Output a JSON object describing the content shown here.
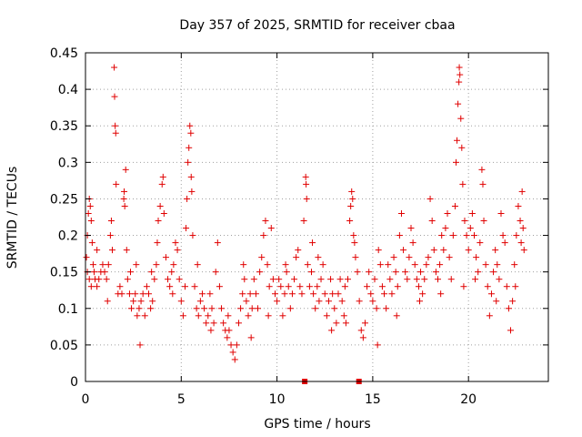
{
  "chart_data": {
    "type": "scatter",
    "title": "Day 357 of 2025, SRMTID for receiver cbaa",
    "xlabel": "GPS time / hours",
    "ylabel": "SRMTID / TECUs",
    "xlim": [
      0,
      24.17
    ],
    "ylim": [
      0,
      0.45
    ],
    "xticks": [
      0,
      5,
      10,
      15,
      20
    ],
    "xtick_labels": [
      "0",
      "5",
      "10",
      "15",
      "20"
    ],
    "yticks": [
      0,
      0.05,
      0.1,
      0.15,
      0.2,
      0.25,
      0.3,
      0.35,
      0.4,
      0.45
    ],
    "ytick_labels": [
      "0",
      "0.05",
      "0.1",
      "0.15",
      "0.2",
      "0.25",
      "0.3",
      "0.35",
      "0.4",
      "0.45"
    ],
    "grid": true,
    "marker": "plus",
    "color": "#e00000",
    "series": [
      {
        "name": "SRMTID",
        "points": [
          [
            0.05,
            0.17
          ],
          [
            0.1,
            0.2
          ],
          [
            0.15,
            0.23
          ],
          [
            0.2,
            0.25
          ],
          [
            0.25,
            0.24
          ],
          [
            0.3,
            0.22
          ],
          [
            0.35,
            0.19
          ],
          [
            0.4,
            0.16
          ],
          [
            0.45,
            0.15
          ],
          [
            0.5,
            0.14
          ],
          [
            0.1,
            0.15
          ],
          [
            0.2,
            0.14
          ],
          [
            0.3,
            0.13
          ],
          [
            0.6,
            0.13
          ],
          [
            0.7,
            0.14
          ],
          [
            0.8,
            0.15
          ],
          [
            0.9,
            0.16
          ],
          [
            1.0,
            0.15
          ],
          [
            1.1,
            0.14
          ],
          [
            1.2,
            0.16
          ],
          [
            1.3,
            0.2
          ],
          [
            1.35,
            0.22
          ],
          [
            1.4,
            0.18
          ],
          [
            1.5,
            0.43
          ],
          [
            1.52,
            0.39
          ],
          [
            1.55,
            0.35
          ],
          [
            1.58,
            0.34
          ],
          [
            1.6,
            0.27
          ],
          [
            1.7,
            0.12
          ],
          [
            1.8,
            0.13
          ],
          [
            1.9,
            0.12
          ],
          [
            2.0,
            0.25
          ],
          [
            2.02,
            0.26
          ],
          [
            2.05,
            0.24
          ],
          [
            2.1,
            0.29
          ],
          [
            2.15,
            0.18
          ],
          [
            2.2,
            0.14
          ],
          [
            2.3,
            0.12
          ],
          [
            2.4,
            0.1
          ],
          [
            2.5,
            0.11
          ],
          [
            2.6,
            0.12
          ],
          [
            2.7,
            0.09
          ],
          [
            2.8,
            0.1
          ],
          [
            2.85,
            0.05
          ],
          [
            2.9,
            0.11
          ],
          [
            3.0,
            0.12
          ],
          [
            3.1,
            0.09
          ],
          [
            3.2,
            0.13
          ],
          [
            3.3,
            0.12
          ],
          [
            3.4,
            0.1
          ],
          [
            3.5,
            0.11
          ],
          [
            3.6,
            0.14
          ],
          [
            3.7,
            0.16
          ],
          [
            3.8,
            0.22
          ],
          [
            3.9,
            0.24
          ],
          [
            4.0,
            0.27
          ],
          [
            4.05,
            0.28
          ],
          [
            4.1,
            0.23
          ],
          [
            4.2,
            0.17
          ],
          [
            4.3,
            0.14
          ],
          [
            4.4,
            0.13
          ],
          [
            4.5,
            0.15
          ],
          [
            4.6,
            0.16
          ],
          [
            4.7,
            0.19
          ],
          [
            4.8,
            0.18
          ],
          [
            4.9,
            0.14
          ],
          [
            5.0,
            0.11
          ],
          [
            5.1,
            0.09
          ],
          [
            5.2,
            0.13
          ],
          [
            5.25,
            0.21
          ],
          [
            5.3,
            0.25
          ],
          [
            5.35,
            0.3
          ],
          [
            5.4,
            0.32
          ],
          [
            5.45,
            0.35
          ],
          [
            5.5,
            0.34
          ],
          [
            5.52,
            0.28
          ],
          [
            5.55,
            0.26
          ],
          [
            5.6,
            0.2
          ],
          [
            5.7,
            0.13
          ],
          [
            5.8,
            0.1
          ],
          [
            5.9,
            0.09
          ],
          [
            6.0,
            0.11
          ],
          [
            6.1,
            0.12
          ],
          [
            6.2,
            0.1
          ],
          [
            6.3,
            0.08
          ],
          [
            6.4,
            0.09
          ],
          [
            6.5,
            0.12
          ],
          [
            6.6,
            0.1
          ],
          [
            6.7,
            0.08
          ],
          [
            6.8,
            0.15
          ],
          [
            6.9,
            0.19
          ],
          [
            7.0,
            0.13
          ],
          [
            7.1,
            0.1
          ],
          [
            7.2,
            0.08
          ],
          [
            7.3,
            0.07
          ],
          [
            7.4,
            0.06
          ],
          [
            7.5,
            0.07
          ],
          [
            7.6,
            0.05
          ],
          [
            7.7,
            0.04
          ],
          [
            7.8,
            0.03
          ],
          [
            7.9,
            0.05
          ],
          [
            8.0,
            0.08
          ],
          [
            8.1,
            0.1
          ],
          [
            8.2,
            0.12
          ],
          [
            8.3,
            0.14
          ],
          [
            8.4,
            0.11
          ],
          [
            8.5,
            0.09
          ],
          [
            8.6,
            0.12
          ],
          [
            8.7,
            0.1
          ],
          [
            8.8,
            0.14
          ],
          [
            8.9,
            0.12
          ],
          [
            9.0,
            0.1
          ],
          [
            9.1,
            0.15
          ],
          [
            9.2,
            0.17
          ],
          [
            9.3,
            0.2
          ],
          [
            9.4,
            0.22
          ],
          [
            9.5,
            0.16
          ],
          [
            9.6,
            0.13
          ],
          [
            9.7,
            0.21
          ],
          [
            9.8,
            0.14
          ],
          [
            9.9,
            0.12
          ],
          [
            10.0,
            0.11
          ],
          [
            10.1,
            0.14
          ],
          [
            10.2,
            0.13
          ],
          [
            10.3,
            0.09
          ],
          [
            10.4,
            0.12
          ],
          [
            10.5,
            0.15
          ],
          [
            10.6,
            0.13
          ],
          [
            10.7,
            0.1
          ],
          [
            10.8,
            0.12
          ],
          [
            10.9,
            0.14
          ],
          [
            11.0,
            0.17
          ],
          [
            11.1,
            0.18
          ],
          [
            11.2,
            0.13
          ],
          [
            11.3,
            0.12
          ],
          [
            11.4,
            0.22
          ],
          [
            11.5,
            0.28
          ],
          [
            11.52,
            0.27
          ],
          [
            11.55,
            0.25
          ],
          [
            11.6,
            0.16
          ],
          [
            11.7,
            0.13
          ],
          [
            11.8,
            0.15
          ],
          [
            11.9,
            0.12
          ],
          [
            12.0,
            0.1
          ],
          [
            12.1,
            0.13
          ],
          [
            12.2,
            0.11
          ],
          [
            12.3,
            0.14
          ],
          [
            12.4,
            0.16
          ],
          [
            12.5,
            0.12
          ],
          [
            12.6,
            0.09
          ],
          [
            12.7,
            0.11
          ],
          [
            12.8,
            0.14
          ],
          [
            12.9,
            0.12
          ],
          [
            13.0,
            0.1
          ],
          [
            13.1,
            0.08
          ],
          [
            13.2,
            0.12
          ],
          [
            13.3,
            0.14
          ],
          [
            13.4,
            0.11
          ],
          [
            13.5,
            0.09
          ],
          [
            13.6,
            0.08
          ],
          [
            13.7,
            0.14
          ],
          [
            13.8,
            0.22
          ],
          [
            13.85,
            0.24
          ],
          [
            13.9,
            0.26
          ],
          [
            13.95,
            0.25
          ],
          [
            14.0,
            0.2
          ],
          [
            14.05,
            0.19
          ],
          [
            14.1,
            0.17
          ],
          [
            14.2,
            0.15
          ],
          [
            14.3,
            0.11
          ],
          [
            14.4,
            0.07
          ],
          [
            14.5,
            0.06
          ],
          [
            14.6,
            0.08
          ],
          [
            14.7,
            0.13
          ],
          [
            14.8,
            0.15
          ],
          [
            14.9,
            0.12
          ],
          [
            15.0,
            0.11
          ],
          [
            15.1,
            0.14
          ],
          [
            15.2,
            0.1
          ],
          [
            15.3,
            0.18
          ],
          [
            15.4,
            0.16
          ],
          [
            15.5,
            0.13
          ],
          [
            15.6,
            0.12
          ],
          [
            15.7,
            0.1
          ],
          [
            15.8,
            0.16
          ],
          [
            15.9,
            0.14
          ],
          [
            16.0,
            0.12
          ],
          [
            16.1,
            0.17
          ],
          [
            16.2,
            0.15
          ],
          [
            16.3,
            0.13
          ],
          [
            16.4,
            0.2
          ],
          [
            16.5,
            0.23
          ],
          [
            16.6,
            0.18
          ],
          [
            16.7,
            0.15
          ],
          [
            16.8,
            0.14
          ],
          [
            16.9,
            0.17
          ],
          [
            17.0,
            0.21
          ],
          [
            17.1,
            0.19
          ],
          [
            17.2,
            0.16
          ],
          [
            17.3,
            0.14
          ],
          [
            17.4,
            0.13
          ],
          [
            17.5,
            0.15
          ],
          [
            17.6,
            0.12
          ],
          [
            17.7,
            0.14
          ],
          [
            17.8,
            0.16
          ],
          [
            17.9,
            0.17
          ],
          [
            18.0,
            0.25
          ],
          [
            18.1,
            0.22
          ],
          [
            18.2,
            0.18
          ],
          [
            18.3,
            0.15
          ],
          [
            18.4,
            0.14
          ],
          [
            18.5,
            0.16
          ],
          [
            18.6,
            0.2
          ],
          [
            18.7,
            0.18
          ],
          [
            18.8,
            0.21
          ],
          [
            18.9,
            0.23
          ],
          [
            19.0,
            0.17
          ],
          [
            19.1,
            0.14
          ],
          [
            19.2,
            0.2
          ],
          [
            19.3,
            0.24
          ],
          [
            19.35,
            0.3
          ],
          [
            19.4,
            0.33
          ],
          [
            19.45,
            0.38
          ],
          [
            19.5,
            0.41
          ],
          [
            19.52,
            0.43
          ],
          [
            19.55,
            0.42
          ],
          [
            19.6,
            0.36
          ],
          [
            19.65,
            0.32
          ],
          [
            19.7,
            0.27
          ],
          [
            19.8,
            0.22
          ],
          [
            19.9,
            0.2
          ],
          [
            20.0,
            0.18
          ],
          [
            20.1,
            0.21
          ],
          [
            20.2,
            0.23
          ],
          [
            20.3,
            0.2
          ],
          [
            20.4,
            0.17
          ],
          [
            20.5,
            0.15
          ],
          [
            20.6,
            0.19
          ],
          [
            20.7,
            0.29
          ],
          [
            20.75,
            0.27
          ],
          [
            20.8,
            0.22
          ],
          [
            20.9,
            0.16
          ],
          [
            21.0,
            0.13
          ],
          [
            21.1,
            0.09
          ],
          [
            21.2,
            0.12
          ],
          [
            21.3,
            0.15
          ],
          [
            21.4,
            0.18
          ],
          [
            21.5,
            0.16
          ],
          [
            21.6,
            0.14
          ],
          [
            21.7,
            0.23
          ],
          [
            21.8,
            0.2
          ],
          [
            21.9,
            0.19
          ],
          [
            22.0,
            0.13
          ],
          [
            22.1,
            0.1
          ],
          [
            22.2,
            0.07
          ],
          [
            22.3,
            0.11
          ],
          [
            22.4,
            0.16
          ],
          [
            22.5,
            0.2
          ],
          [
            22.6,
            0.24
          ],
          [
            22.7,
            0.22
          ],
          [
            22.75,
            0.19
          ],
          [
            22.8,
            0.26
          ],
          [
            22.85,
            0.21
          ],
          [
            22.9,
            0.18
          ],
          [
            0.6,
            0.18
          ],
          [
            1.15,
            0.11
          ],
          [
            2.35,
            0.15
          ],
          [
            3.45,
            0.15
          ],
          [
            4.55,
            0.12
          ],
          [
            6.55,
            0.07
          ],
          [
            7.45,
            0.09
          ],
          [
            8.65,
            0.06
          ],
          [
            9.55,
            0.09
          ],
          [
            10.45,
            0.16
          ],
          [
            12.15,
            0.17
          ],
          [
            12.85,
            0.07
          ],
          [
            13.55,
            0.13
          ],
          [
            15.25,
            0.05
          ],
          [
            16.25,
            0.09
          ],
          [
            17.45,
            0.11
          ],
          [
            18.55,
            0.12
          ],
          [
            19.75,
            0.13
          ],
          [
            20.35,
            0.14
          ],
          [
            21.45,
            0.11
          ],
          [
            22.45,
            0.13
          ],
          [
            11.85,
            0.19
          ],
          [
            8.25,
            0.16
          ],
          [
            5.85,
            0.16
          ],
          [
            3.75,
            0.19
          ],
          [
            2.65,
            0.16
          ]
        ]
      }
    ],
    "markers_on_axis": [
      {
        "x": 11.45,
        "y": 0
      },
      {
        "x": 14.28,
        "y": 0
      }
    ]
  }
}
